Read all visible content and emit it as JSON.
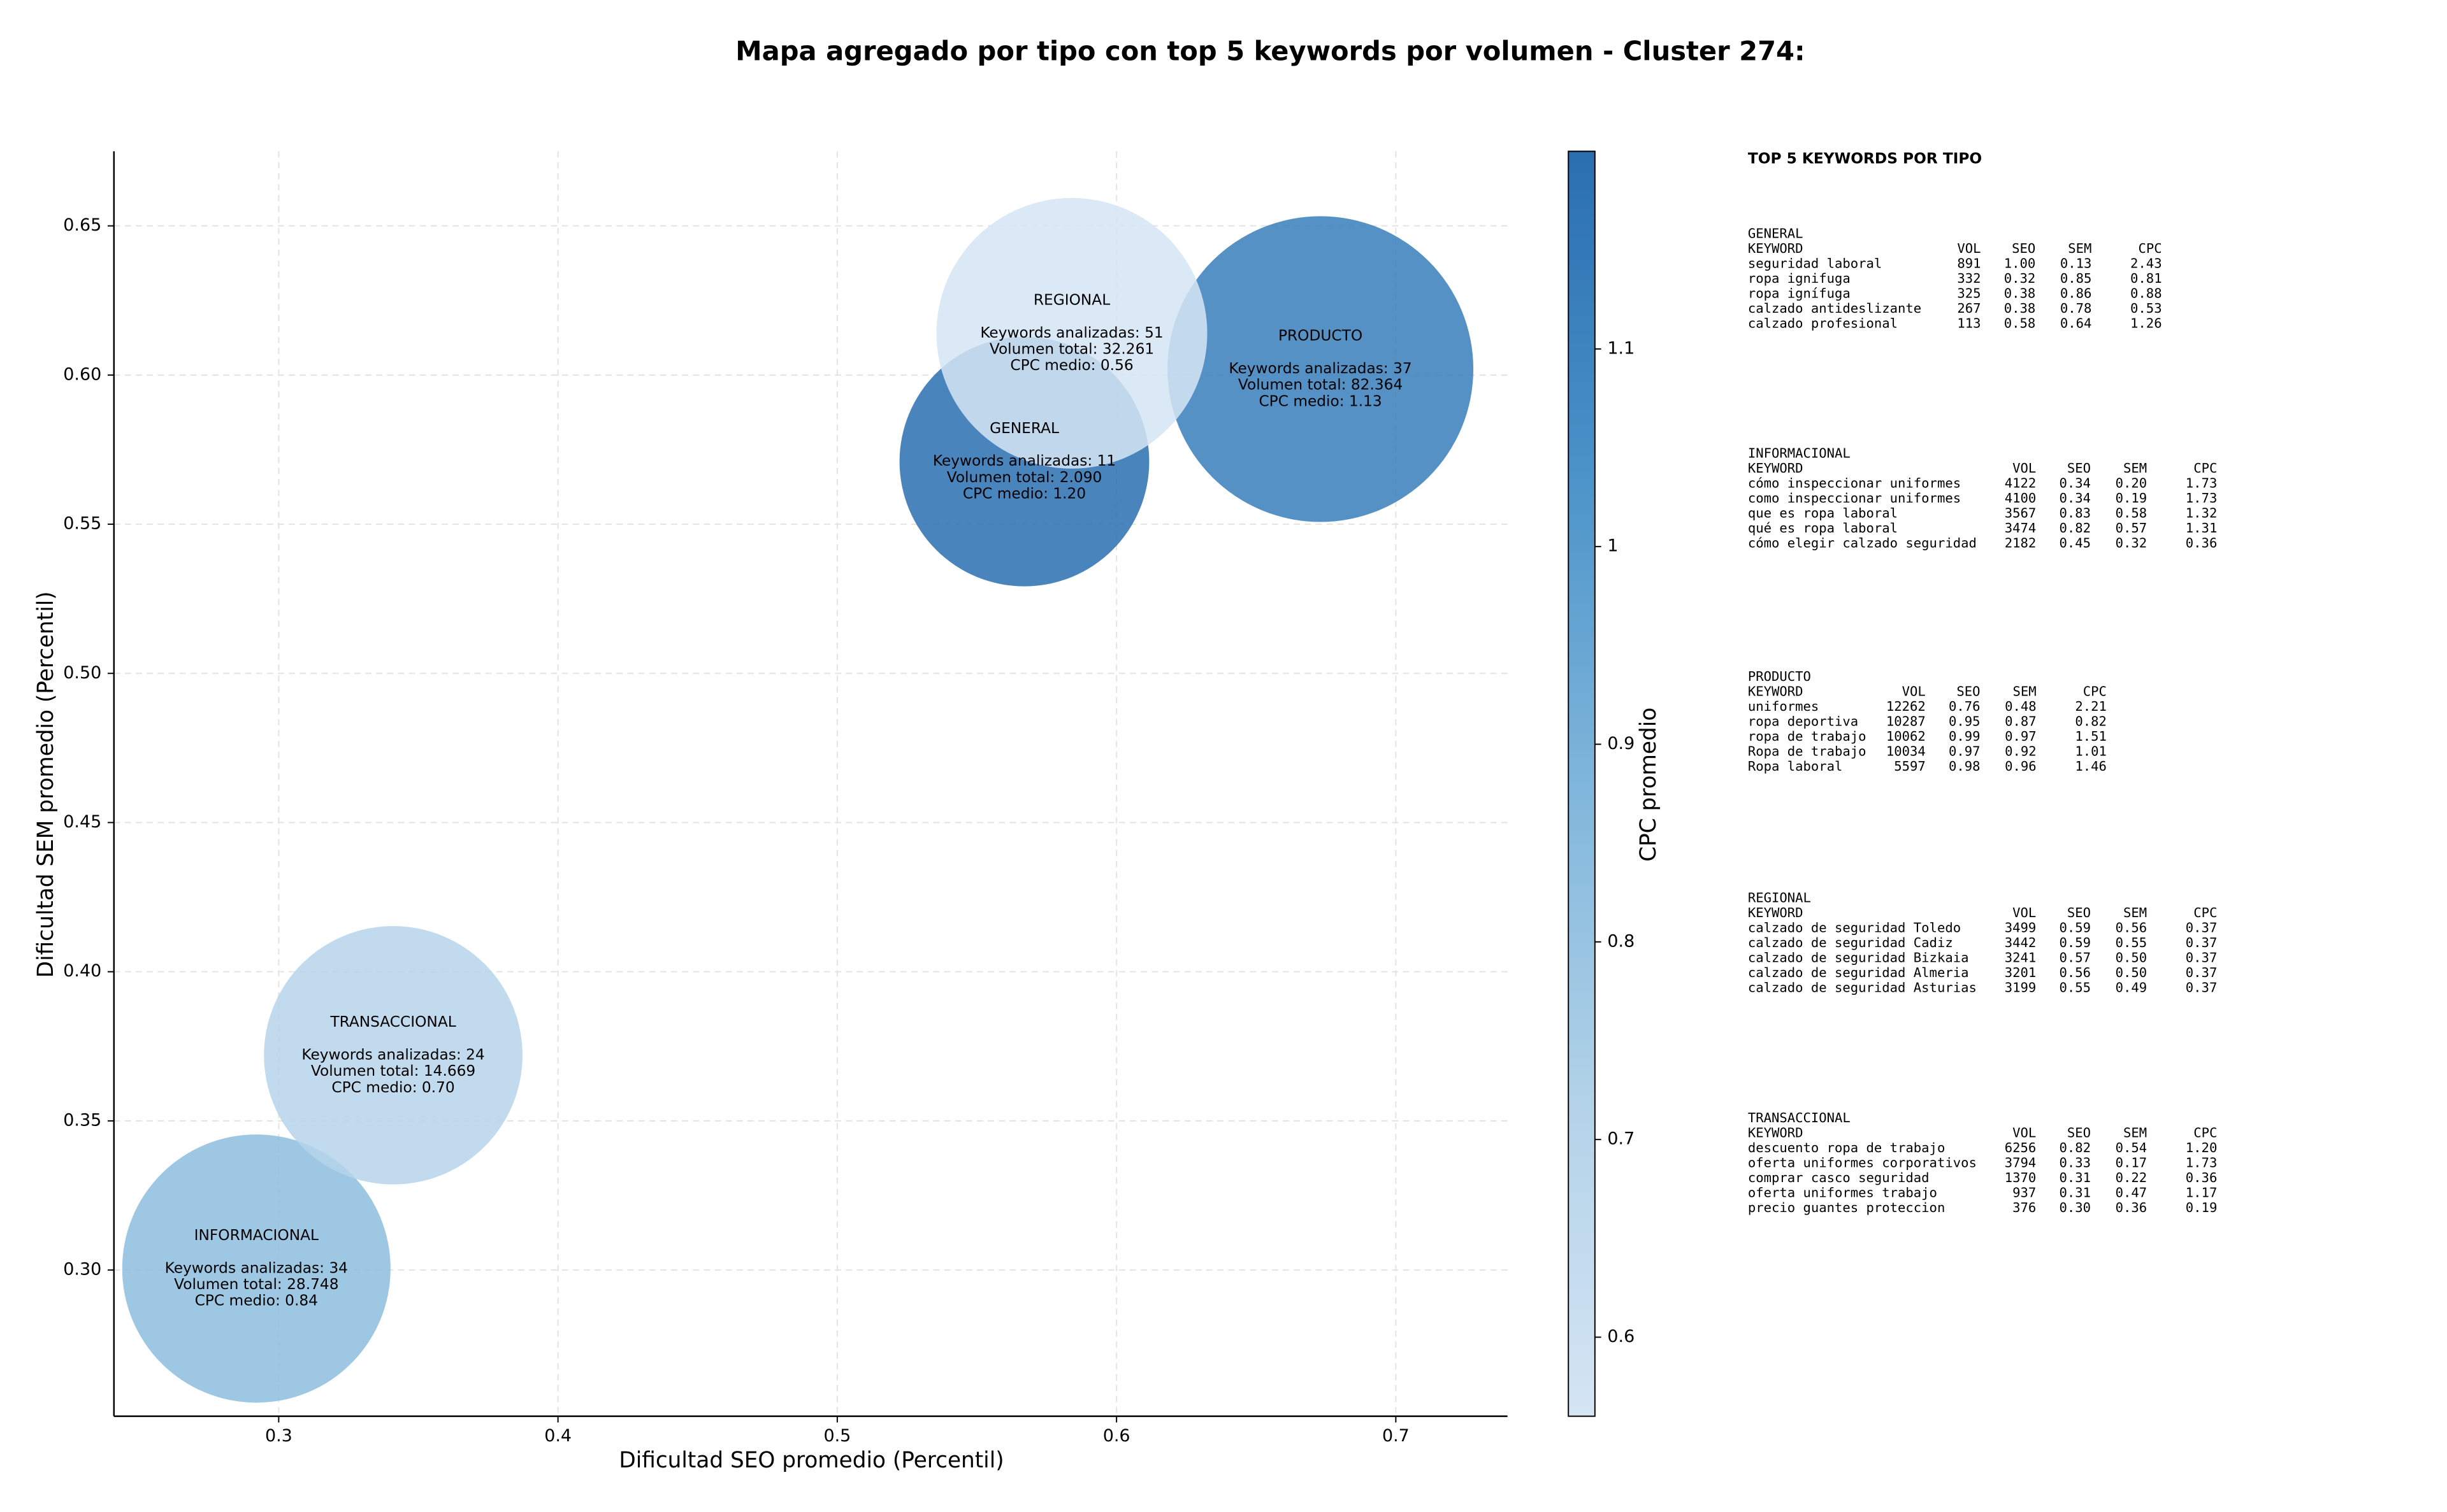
{
  "chart_data": {
    "type": "bubble",
    "title": "Mapa agregado por tipo con top 5 keywords por volumen - Cluster 274:",
    "x_label": "Dificultad SEO promedio (Percentil)",
    "y_label": "Dificultad SEM promedio (Percentil)",
    "colorbar_label": "CPC promedio",
    "xlim": [
      0.241,
      0.74
    ],
    "ylim": [
      0.251,
      0.675
    ],
    "xticks": [
      0.3,
      0.4,
      0.5,
      0.6,
      0.7
    ],
    "yticks": [
      {
        "value": 0.3,
        "label": "0.30"
      },
      0.35,
      {
        "value": 0.4,
        "label": "0.40"
      },
      0.45,
      {
        "value": 0.5,
        "label": "0.50"
      },
      0.55,
      {
        "value": 0.6,
        "label": "0.60"
      },
      0.65
    ],
    "clim": [
      0.56,
      1.2
    ],
    "cticks": [
      0.6,
      0.7,
      0.8,
      0.9,
      1.0,
      1.1
    ],
    "colormap": [
      "#d5e5f4",
      "#b2d2e8",
      "#7fb6db",
      "#4a92c8",
      "#2a6eb0"
    ],
    "grid": true,
    "points": [
      {
        "name": "GENERAL",
        "x": 0.567,
        "y": 0.571,
        "volume": 2090,
        "cpc": 1.2,
        "lines": [
          "Keywords analizadas: 11",
          "Volumen total: 2.090",
          "CPC medio: 1.20"
        ]
      },
      {
        "name": "INFORMACIONAL",
        "x": 0.292,
        "y": 0.3005,
        "volume": 28748,
        "cpc": 0.84,
        "lines": [
          "Keywords analizadas: 34",
          "Volumen total: 28.748",
          "CPC medio: 0.84"
        ]
      },
      {
        "name": "PRODUCTO",
        "x": 0.673,
        "y": 0.602,
        "volume": 82364,
        "cpc": 1.13,
        "lines": [
          "Keywords analizadas: 37",
          "Volumen total: 82.364",
          "CPC medio: 1.13"
        ]
      },
      {
        "name": "REGIONAL",
        "x": 0.584,
        "y": 0.614,
        "volume": 32261,
        "cpc": 0.56,
        "lines": [
          "Keywords analizadas: 51",
          "Volumen total: 32.261",
          "CPC medio: 0.56"
        ]
      },
      {
        "name": "TRANSACCIONAL",
        "x": 0.341,
        "y": 0.372,
        "volume": 14669,
        "cpc": 0.7,
        "lines": [
          "Keywords analizadas: 24",
          "Volumen total: 14.669",
          "CPC medio: 0.70"
        ]
      }
    ]
  },
  "keyword_table": {
    "title": "TOP 5 KEYWORDS POR TIPO",
    "columns": [
      "KEYWORD",
      "VOL",
      "SEO",
      "SEM",
      "CPC"
    ],
    "sections": [
      {
        "title": "GENERAL",
        "rows": [
          [
            "seguridad laboral",
            "891",
            "1.00",
            "0.13",
            "2.43"
          ],
          [
            "ropa ignifuga",
            "332",
            "0.32",
            "0.85",
            "0.81"
          ],
          [
            "ropa ignífuga",
            "325",
            "0.38",
            "0.86",
            "0.88"
          ],
          [
            "calzado antideslizante",
            "267",
            "0.38",
            "0.78",
            "0.53"
          ],
          [
            "calzado profesional",
            "113",
            "0.58",
            "0.64",
            "1.26"
          ]
        ]
      },
      {
        "title": "INFORMACIONAL",
        "rows": [
          [
            "cómo inspeccionar uniformes",
            "4122",
            "0.34",
            "0.20",
            "1.73"
          ],
          [
            "como inspeccionar uniformes",
            "4100",
            "0.34",
            "0.19",
            "1.73"
          ],
          [
            "que es ropa laboral",
            "3567",
            "0.83",
            "0.58",
            "1.32"
          ],
          [
            "qué es ropa laboral",
            "3474",
            "0.82",
            "0.57",
            "1.31"
          ],
          [
            "cómo elegir calzado seguridad",
            "2182",
            "0.45",
            "0.32",
            "0.36"
          ]
        ]
      },
      {
        "title": "PRODUCTO",
        "rows": [
          [
            "uniformes",
            "12262",
            "0.76",
            "0.48",
            "2.21"
          ],
          [
            "ropa deportiva",
            "10287",
            "0.95",
            "0.87",
            "0.82"
          ],
          [
            "ropa de trabajo",
            "10062",
            "0.99",
            "0.97",
            "1.51"
          ],
          [
            "Ropa de trabajo",
            "10034",
            "0.97",
            "0.92",
            "1.01"
          ],
          [
            "Ropa laboral",
            "5597",
            "0.98",
            "0.96",
            "1.46"
          ]
        ]
      },
      {
        "title": "REGIONAL",
        "rows": [
          [
            "calzado de seguridad Toledo",
            "3499",
            "0.59",
            "0.56",
            "0.37"
          ],
          [
            "calzado de seguridad Cadiz",
            "3442",
            "0.59",
            "0.55",
            "0.37"
          ],
          [
            "calzado de seguridad Bizkaia",
            "3241",
            "0.57",
            "0.50",
            "0.37"
          ],
          [
            "calzado de seguridad Almeria",
            "3201",
            "0.56",
            "0.50",
            "0.37"
          ],
          [
            "calzado de seguridad Asturias",
            "3199",
            "0.55",
            "0.49",
            "0.37"
          ]
        ]
      },
      {
        "title": "TRANSACCIONAL",
        "rows": [
          [
            "descuento ropa de trabajo",
            "6256",
            "0.82",
            "0.54",
            "1.20"
          ],
          [
            "oferta uniformes corporativos",
            "3794",
            "0.33",
            "0.17",
            "1.73"
          ],
          [
            "comprar casco seguridad",
            "1370",
            "0.31",
            "0.22",
            "0.36"
          ],
          [
            "oferta uniformes trabajo",
            "937",
            "0.31",
            "0.47",
            "1.17"
          ],
          [
            "precio guantes proteccion",
            "376",
            "0.30",
            "0.36",
            "0.19"
          ]
        ]
      }
    ]
  }
}
